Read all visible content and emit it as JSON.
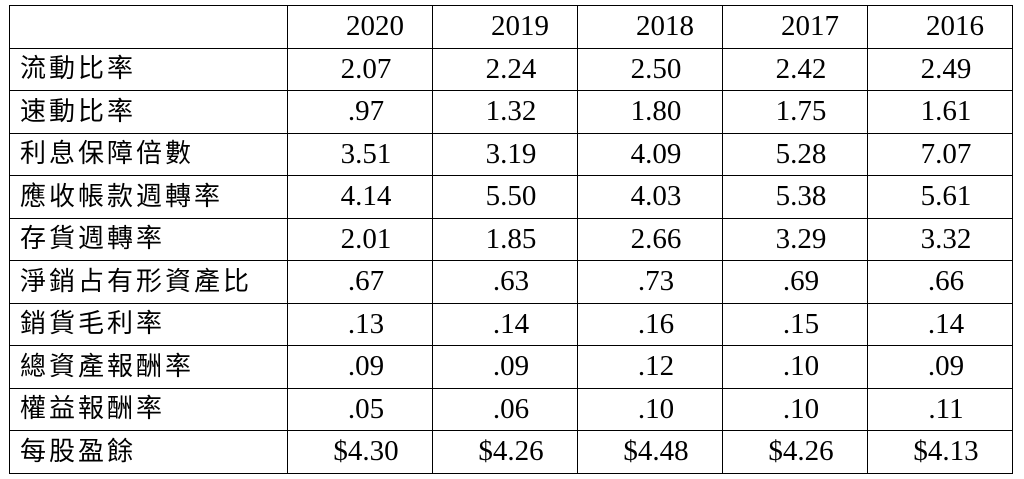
{
  "table": {
    "corner": "",
    "years": [
      "2020",
      "2019",
      "2018",
      "2017",
      "2016"
    ],
    "rows": [
      {
        "label": "流動比率",
        "values": [
          "2.07",
          "2.24",
          "2.50",
          "2.42",
          "2.49"
        ]
      },
      {
        "label": "速動比率",
        "values": [
          ".97",
          "1.32",
          "1.80",
          "1.75",
          "1.61"
        ]
      },
      {
        "label": "利息保障倍數",
        "values": [
          "3.51",
          "3.19",
          "4.09",
          "5.28",
          "7.07"
        ]
      },
      {
        "label": "應收帳款週轉率",
        "values": [
          "4.14",
          "5.50",
          "4.03",
          "5.38",
          "5.61"
        ]
      },
      {
        "label": "存貨週轉率",
        "values": [
          "2.01",
          "1.85",
          "2.66",
          "3.29",
          "3.32"
        ]
      },
      {
        "label": "淨銷占有形資產比",
        "values": [
          ".67",
          ".63",
          ".73",
          ".69",
          ".66"
        ]
      },
      {
        "label": "銷貨毛利率",
        "values": [
          ".13",
          ".14",
          ".16",
          ".15",
          ".14"
        ]
      },
      {
        "label": "總資產報酬率",
        "values": [
          ".09",
          ".09",
          ".12",
          ".10",
          ".09"
        ]
      },
      {
        "label": "權益報酬率",
        "values": [
          ".05",
          ".06",
          ".10",
          ".10",
          ".11"
        ]
      },
      {
        "label": "每股盈餘",
        "values": [
          "$4.30",
          "$4.26",
          "$4.48",
          "$4.26",
          "$4.13"
        ]
      }
    ]
  }
}
